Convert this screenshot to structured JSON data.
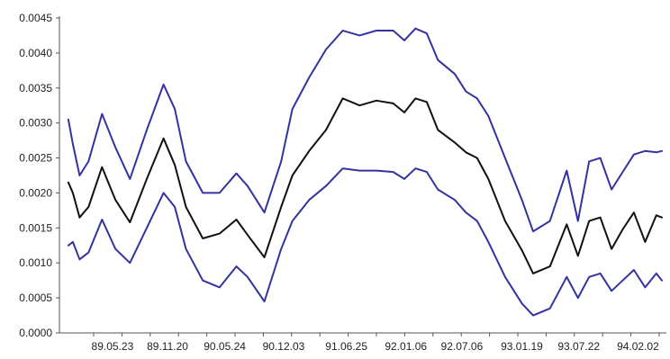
{
  "colors": {
    "middle_series": "#111111",
    "band_series": "#3333a0",
    "axis": "#555555"
  },
  "chart_data": {
    "type": "line",
    "title": "",
    "xlabel": "",
    "ylabel": "",
    "ylim": [
      0.0,
      0.0045
    ],
    "y_ticks": [
      "0.0000",
      "0.0005",
      "0.0010",
      "0.0015",
      "0.0020",
      "0.0025",
      "0.0030",
      "0.0035",
      "0.0040",
      "0.0045"
    ],
    "x_ticks": [
      "89.05.23",
      "89.11.20",
      "90.05.24",
      "90.12.03",
      "91.06.25",
      "92.01.06",
      "92.07.06",
      "93.01.19",
      "93.07.22",
      "94.02.02"
    ],
    "grid": false,
    "legend": "none",
    "series": [
      {
        "role": "upper",
        "color": "#3333a0",
        "x": [
          89.0,
          89.04,
          89.1,
          89.18,
          89.3,
          89.42,
          89.55,
          89.7,
          89.85,
          89.95,
          90.05,
          90.2,
          90.35,
          90.5,
          90.6,
          90.75,
          90.9,
          91.0,
          91.15,
          91.3,
          91.45,
          91.6,
          91.75,
          91.9,
          92.0,
          92.1,
          92.2,
          92.3,
          92.45,
          92.55,
          92.65,
          92.75,
          92.9,
          93.05,
          93.15,
          93.3,
          93.45,
          93.55,
          93.65,
          93.75,
          93.85,
          93.95,
          94.05,
          94.15,
          94.25,
          94.3
        ],
        "y": [
          0.00305,
          0.0027,
          0.00225,
          0.00245,
          0.00313,
          0.00265,
          0.0022,
          0.0029,
          0.00355,
          0.0032,
          0.00245,
          0.002,
          0.002,
          0.00228,
          0.0021,
          0.00172,
          0.00245,
          0.0032,
          0.00365,
          0.00405,
          0.00432,
          0.00425,
          0.00432,
          0.00432,
          0.00418,
          0.00435,
          0.00428,
          0.0039,
          0.0037,
          0.00345,
          0.00335,
          0.0031,
          0.0025,
          0.0019,
          0.00145,
          0.0016,
          0.00232,
          0.0016,
          0.00245,
          0.0025,
          0.00205,
          0.0023,
          0.00255,
          0.0026,
          0.00258,
          0.0026
        ]
      },
      {
        "role": "estimate",
        "color": "#111111",
        "x": [
          89.0,
          89.04,
          89.1,
          89.18,
          89.3,
          89.42,
          89.55,
          89.7,
          89.85,
          89.95,
          90.05,
          90.2,
          90.35,
          90.5,
          90.6,
          90.75,
          90.9,
          91.0,
          91.15,
          91.3,
          91.45,
          91.6,
          91.75,
          91.9,
          92.0,
          92.1,
          92.2,
          92.3,
          92.45,
          92.55,
          92.65,
          92.75,
          92.9,
          93.05,
          93.15,
          93.3,
          93.45,
          93.55,
          93.65,
          93.75,
          93.85,
          93.95,
          94.05,
          94.15,
          94.25,
          94.3
        ],
        "y": [
          0.00215,
          0.002,
          0.00165,
          0.0018,
          0.00237,
          0.0019,
          0.00158,
          0.0022,
          0.00278,
          0.0024,
          0.0018,
          0.00135,
          0.00142,
          0.00162,
          0.0014,
          0.00108,
          0.0018,
          0.00225,
          0.0026,
          0.0029,
          0.00335,
          0.00325,
          0.00332,
          0.00328,
          0.00315,
          0.00335,
          0.0033,
          0.0029,
          0.00272,
          0.00258,
          0.0025,
          0.0022,
          0.0016,
          0.00118,
          0.00085,
          0.00095,
          0.00155,
          0.0011,
          0.0016,
          0.00165,
          0.0012,
          0.00148,
          0.00172,
          0.0013,
          0.00168,
          0.00165
        ]
      },
      {
        "role": "lower",
        "color": "#3333a0",
        "x": [
          89.0,
          89.04,
          89.1,
          89.18,
          89.3,
          89.42,
          89.55,
          89.7,
          89.85,
          89.95,
          90.05,
          90.2,
          90.35,
          90.5,
          90.6,
          90.75,
          90.9,
          91.0,
          91.15,
          91.3,
          91.45,
          91.6,
          91.75,
          91.9,
          92.0,
          92.1,
          92.2,
          92.3,
          92.45,
          92.55,
          92.65,
          92.75,
          92.9,
          93.05,
          93.15,
          93.3,
          93.45,
          93.55,
          93.65,
          93.75,
          93.85,
          93.95,
          94.05,
          94.15,
          94.25,
          94.3
        ],
        "y": [
          0.00125,
          0.0013,
          0.00105,
          0.00115,
          0.00162,
          0.0012,
          0.001,
          0.0015,
          0.002,
          0.0018,
          0.0012,
          0.00075,
          0.00065,
          0.00095,
          0.0008,
          0.00045,
          0.0012,
          0.0016,
          0.0019,
          0.0021,
          0.00235,
          0.00232,
          0.00232,
          0.0023,
          0.0022,
          0.00235,
          0.0023,
          0.00205,
          0.0019,
          0.00172,
          0.0016,
          0.0013,
          0.0008,
          0.00042,
          0.00025,
          0.00035,
          0.0008,
          0.0005,
          0.0008,
          0.00085,
          0.0006,
          0.00075,
          0.0009,
          0.00065,
          0.00085,
          0.00075
        ]
      }
    ]
  }
}
